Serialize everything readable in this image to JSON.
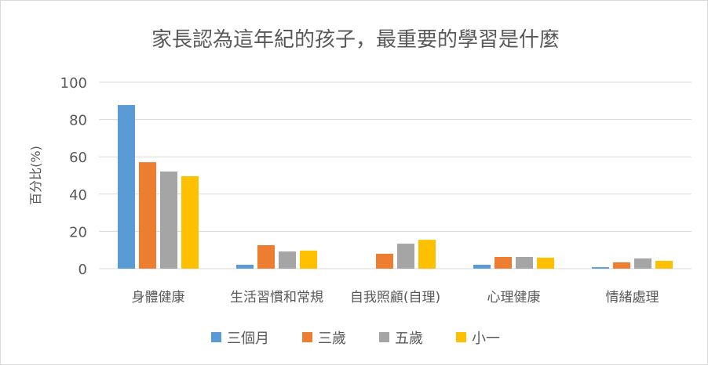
{
  "chart_data": {
    "type": "bar",
    "title": "家長認為這年紀的孩子，最重要的學習是什麼",
    "xlabel": "",
    "ylabel": "百分比(%)",
    "ylim": [
      0,
      100
    ],
    "yticks": [
      "0",
      "20",
      "40",
      "60",
      "80",
      "100"
    ],
    "grid": true,
    "legend_position": "bottom",
    "categories": [
      "身體健康",
      "生活習慣和常規",
      "自我照顧(自理)",
      "心理健康",
      "情緒處理"
    ],
    "series": [
      {
        "name": "三個月",
        "color": "#5b9bd5",
        "values": [
          87.8,
          2.1,
          0,
          2.1,
          0.8
        ]
      },
      {
        "name": "三歲",
        "color": "#ed7d31",
        "values": [
          57.1,
          12.6,
          8.0,
          6.3,
          3.4
        ]
      },
      {
        "name": "五歲",
        "color": "#a5a5a5",
        "values": [
          52.1,
          9.2,
          13.4,
          6.3,
          5.5
        ]
      },
      {
        "name": "小一",
        "color": "#ffc000",
        "values": [
          49.6,
          9.7,
          15.5,
          5.9,
          4.2
        ]
      }
    ]
  }
}
